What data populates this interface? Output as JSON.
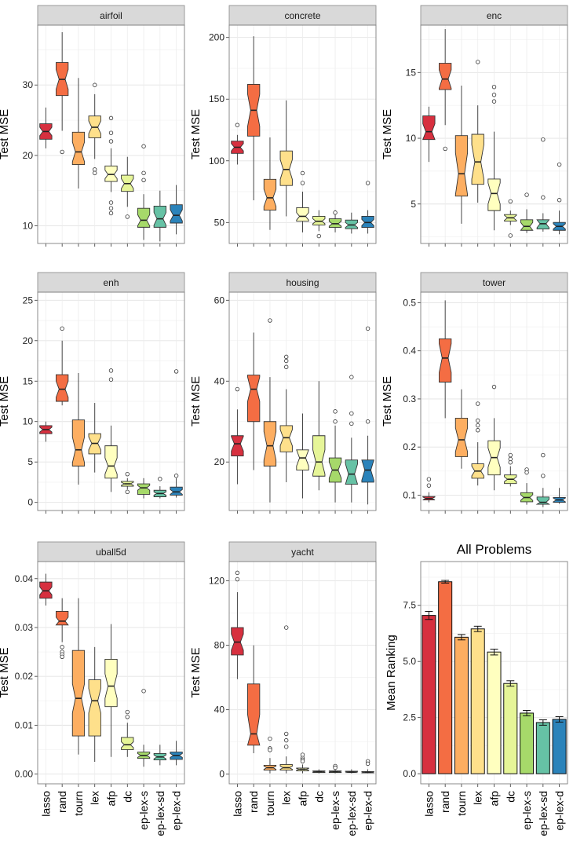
{
  "colors": [
    "#d7303f",
    "#f46d43",
    "#fdae61",
    "#fee08b",
    "#ffffbf",
    "#e6f598",
    "#a6d96a",
    "#66c2a5",
    "#2b83ba"
  ],
  "methods": [
    "lasso",
    "rand",
    "tourn",
    "lex",
    "afp",
    "dc",
    "ep-lex-s",
    "ep-lex-sd",
    "ep-lex-d"
  ],
  "chart_data": [
    {
      "type": "box",
      "name": "airfoil",
      "title": "airfoil",
      "ylabel": "Test MSE",
      "ylim": [
        7.5,
        38.5
      ],
      "yticks": [
        10,
        20,
        30
      ],
      "boxes": [
        {
          "min": 21,
          "q1": 22.3,
          "med": 23.4,
          "q3": 24.5,
          "max": 26.8,
          "notch": 0.6,
          "out": []
        },
        {
          "min": 23.5,
          "q1": 28.5,
          "med": 30.8,
          "q3": 33.2,
          "max": 37.5,
          "notch": 1.4,
          "out": [
            20.5
          ]
        },
        {
          "min": 15.3,
          "q1": 18.7,
          "med": 20.5,
          "q3": 23.3,
          "max": 31,
          "notch": 1.4,
          "out": []
        },
        {
          "min": 19.5,
          "q1": 22.5,
          "med": 24,
          "q3": 25.6,
          "max": 28.7,
          "notch": 0.9,
          "out": [
            30,
            18,
            17.5
          ]
        },
        {
          "min": 14.8,
          "q1": 16.3,
          "med": 17.3,
          "q3": 18.5,
          "max": 21,
          "notch": 0.6,
          "out": [
            25.3,
            23.2,
            22,
            13.3,
            12.5,
            11.8
          ]
        },
        {
          "min": 12.7,
          "q1": 14.9,
          "med": 16,
          "q3": 17.2,
          "max": 19.8,
          "notch": 0.7,
          "out": [
            11.3
          ]
        },
        {
          "min": 8,
          "q1": 9.8,
          "med": 10.8,
          "q3": 12.5,
          "max": 14.5,
          "notch": 0.8,
          "out": [
            21.3,
            17.5,
            16.5
          ]
        },
        {
          "min": 7.8,
          "q1": 9.8,
          "med": 11,
          "q3": 12.8,
          "max": 15,
          "notch": 0.9,
          "out": []
        },
        {
          "min": 8.8,
          "q1": 10.4,
          "med": 11.5,
          "q3": 13,
          "max": 15.8,
          "notch": 0.8,
          "out": []
        }
      ]
    },
    {
      "type": "box",
      "name": "concrete",
      "title": "concrete",
      "ylabel": "Test MSE",
      "ylim": [
        33,
        210
      ],
      "yticks": [
        50,
        100,
        150,
        200
      ],
      "boxes": [
        {
          "min": 97,
          "q1": 106,
          "med": 111,
          "q3": 116,
          "max": 121,
          "notch": 3,
          "out": [
            129
          ]
        },
        {
          "min": 68,
          "q1": 120,
          "med": 141,
          "q3": 162,
          "max": 201,
          "notch": 13,
          "out": []
        },
        {
          "min": 44,
          "q1": 60,
          "med": 70,
          "q3": 85,
          "max": 119,
          "notch": 7,
          "out": []
        },
        {
          "min": 55,
          "q1": 80,
          "med": 93,
          "q3": 108,
          "max": 149,
          "notch": 8,
          "out": []
        },
        {
          "min": 42,
          "q1": 51,
          "med": 55,
          "q3": 62,
          "max": 75,
          "notch": 3,
          "out": [
            90,
            82
          ]
        },
        {
          "min": 43,
          "q1": 48,
          "med": 51,
          "q3": 55,
          "max": 60,
          "notch": 2,
          "out": [
            39
          ]
        },
        {
          "min": 42,
          "q1": 46,
          "med": 49,
          "q3": 53,
          "max": 60,
          "notch": 2,
          "out": [
            58
          ]
        },
        {
          "min": 41,
          "q1": 45,
          "med": 48,
          "q3": 52,
          "max": 58,
          "notch": 2,
          "out": []
        },
        {
          "min": 41,
          "q1": 46,
          "med": 50,
          "q3": 55,
          "max": 60,
          "notch": 2.5,
          "out": [
            82
          ]
        }
      ]
    },
    {
      "type": "box",
      "name": "enc",
      "title": "enc",
      "ylabel": "Test MSE",
      "ylim": [
        2,
        18.6
      ],
      "yticks": [
        5,
        10,
        15
      ],
      "boxes": [
        {
          "min": 8.2,
          "q1": 9.9,
          "med": 10.5,
          "q3": 11.7,
          "max": 12.4,
          "notch": 0.6,
          "out": []
        },
        {
          "min": 11,
          "q1": 13.7,
          "med": 14.5,
          "q3": 15.7,
          "max": 18.3,
          "notch": 0.7,
          "out": [
            9.2
          ]
        },
        {
          "min": 3.5,
          "q1": 5.6,
          "med": 7.3,
          "q3": 10.2,
          "max": 14,
          "notch": 1.6,
          "out": []
        },
        {
          "min": 5.1,
          "q1": 6.5,
          "med": 8.2,
          "q3": 10.3,
          "max": 12.5,
          "notch": 1.3,
          "out": [
            15.8
          ]
        },
        {
          "min": 3,
          "q1": 4.5,
          "med": 5.8,
          "q3": 6.9,
          "max": 10.5,
          "notch": 0.8,
          "out": [
            13.9,
            13.3,
            12.8
          ]
        },
        {
          "min": 3.4,
          "q1": 3.7,
          "med": 3.95,
          "q3": 4.2,
          "max": 4.5,
          "notch": 0.2,
          "out": [
            5.2,
            2.6
          ]
        },
        {
          "min": 2.8,
          "q1": 3,
          "med": 3.3,
          "q3": 3.8,
          "max": 4.6,
          "notch": 0.3,
          "out": [
            5.7
          ]
        },
        {
          "min": 2.9,
          "q1": 3.1,
          "med": 3.5,
          "q3": 3.8,
          "max": 4.3,
          "notch": 0.3,
          "out": [
            9.9,
            5.5
          ]
        },
        {
          "min": 2.7,
          "q1": 3,
          "med": 3.3,
          "q3": 3.6,
          "max": 4.5,
          "notch": 0.2,
          "out": [
            8,
            5.3
          ]
        }
      ]
    },
    {
      "type": "box",
      "name": "enh",
      "title": "enh",
      "ylabel": "Test MSE",
      "ylim": [
        -1,
        26
      ],
      "yticks": [
        0,
        5,
        10,
        15,
        20,
        25
      ],
      "boxes": [
        {
          "min": 7.5,
          "q1": 8.5,
          "med": 9,
          "q3": 9.5,
          "max": 10,
          "notch": 0.3,
          "out": []
        },
        {
          "min": 12,
          "q1": 12.5,
          "med": 14,
          "q3": 15.8,
          "max": 20,
          "notch": 1,
          "out": [
            21.5
          ]
        },
        {
          "min": 2.2,
          "q1": 4.5,
          "med": 6.5,
          "q3": 10.2,
          "max": 16,
          "notch": 1.6,
          "out": []
        },
        {
          "min": 3.7,
          "q1": 6,
          "med": 7.3,
          "q3": 8.5,
          "max": 12.3,
          "notch": 0.8,
          "out": []
        },
        {
          "min": 1.3,
          "q1": 3,
          "med": 4.5,
          "q3": 7,
          "max": 9.5,
          "notch": 1,
          "out": [
            16.3,
            15.2
          ]
        },
        {
          "min": 1.6,
          "q1": 2,
          "med": 2.3,
          "q3": 2.6,
          "max": 3,
          "notch": 0.2,
          "out": [
            3.5,
            1.3
          ]
        },
        {
          "min": 0.5,
          "q1": 1,
          "med": 1.8,
          "q3": 2.3,
          "max": 3,
          "notch": 0.3,
          "out": []
        },
        {
          "min": 0.5,
          "q1": 0.7,
          "med": 1.1,
          "q3": 1.5,
          "max": 2,
          "notch": 0.2,
          "out": [
            2.9
          ]
        },
        {
          "min": 0.6,
          "q1": 0.9,
          "med": 1.3,
          "q3": 1.9,
          "max": 3,
          "notch": 0.3,
          "out": [
            16.2,
            3.3
          ]
        }
      ]
    },
    {
      "type": "box",
      "name": "housing",
      "title": "housing",
      "ylabel": "Test MSE",
      "ylim": [
        8,
        62
      ],
      "yticks": [
        20,
        40,
        60
      ],
      "boxes": [
        {
          "min": 14.5,
          "q1": 21.5,
          "med": 24.5,
          "q3": 26.5,
          "max": 33,
          "notch": 1.8,
          "out": [
            38
          ]
        },
        {
          "min": 18,
          "q1": 30,
          "med": 38,
          "q3": 41.5,
          "max": 52,
          "notch": 3,
          "out": []
        },
        {
          "min": 10,
          "q1": 19,
          "med": 24,
          "q3": 30,
          "max": 41,
          "notch": 3.5,
          "out": [
            55
          ]
        },
        {
          "min": 15,
          "q1": 22.5,
          "med": 26,
          "q3": 29,
          "max": 38,
          "notch": 2,
          "out": [
            46,
            45,
            43.5
          ]
        },
        {
          "min": 11,
          "q1": 18,
          "med": 21,
          "q3": 23,
          "max": 32,
          "notch": 2,
          "out": []
        },
        {
          "min": 13,
          "q1": 16.5,
          "med": 20,
          "q3": 26.5,
          "max": 40,
          "notch": 3,
          "out": []
        },
        {
          "min": 10,
          "q1": 15,
          "med": 18,
          "q3": 21,
          "max": 29,
          "notch": 2,
          "out": [
            32.5,
            30
          ]
        },
        {
          "min": 10,
          "q1": 14.5,
          "med": 17,
          "q3": 20.5,
          "max": 26,
          "notch": 2.5,
          "out": [
            41,
            32,
            29.5
          ]
        },
        {
          "min": 9.5,
          "q1": 15,
          "med": 18,
          "q3": 20.5,
          "max": 26.5,
          "notch": 2.5,
          "out": [
            53,
            30
          ]
        }
      ]
    },
    {
      "type": "box",
      "name": "tower",
      "title": "tower",
      "ylabel": "Test MSE",
      "ylim": [
        0.068,
        0.522
      ],
      "yticks": [
        0.1,
        0.2,
        0.3,
        0.4,
        0.5
      ],
      "boxes": [
        {
          "min": 0.085,
          "q1": 0.09,
          "med": 0.093,
          "q3": 0.097,
          "max": 0.106,
          "notch": 0.003,
          "out": [
            0.12,
            0.133
          ]
        },
        {
          "min": 0.26,
          "q1": 0.335,
          "med": 0.385,
          "q3": 0.425,
          "max": 0.505,
          "notch": 0.03,
          "out": []
        },
        {
          "min": 0.155,
          "q1": 0.18,
          "med": 0.215,
          "q3": 0.26,
          "max": 0.32,
          "notch": 0.025,
          "out": []
        },
        {
          "min": 0.12,
          "q1": 0.135,
          "med": 0.15,
          "q3": 0.165,
          "max": 0.21,
          "notch": 0.01,
          "out": [
            0.29,
            0.255,
            0.245,
            0.235
          ]
        },
        {
          "min": 0.11,
          "q1": 0.142,
          "med": 0.178,
          "q3": 0.213,
          "max": 0.26,
          "notch": 0.02,
          "out": [
            0.325
          ]
        },
        {
          "min": 0.118,
          "q1": 0.124,
          "med": 0.133,
          "q3": 0.142,
          "max": 0.16,
          "notch": 0.005,
          "out": [
            0.183,
            0.175,
            0.168
          ]
        },
        {
          "min": 0.08,
          "q1": 0.086,
          "med": 0.095,
          "q3": 0.105,
          "max": 0.125,
          "notch": 0.006,
          "out": [
            0.153,
            0.147
          ]
        },
        {
          "min": 0.075,
          "q1": 0.081,
          "med": 0.085,
          "q3": 0.096,
          "max": 0.115,
          "notch": 0.006,
          "out": [
            0.183,
            0.14
          ]
        },
        {
          "min": 0.082,
          "q1": 0.085,
          "med": 0.09,
          "q3": 0.095,
          "max": 0.115,
          "notch": 0.004,
          "out": []
        }
      ]
    },
    {
      "type": "box",
      "name": "uball5d",
      "title": "uball5d",
      "ylabel": "Test MSE",
      "ylim": [
        -0.002,
        0.0435
      ],
      "yticks": [
        0,
        0.01,
        0.02,
        0.03,
        0.04
      ],
      "yticklabels": [
        "0.00",
        "0.01",
        "0.02",
        "0.03",
        "0.04"
      ],
      "boxes": [
        {
          "min": 0.0345,
          "q1": 0.036,
          "med": 0.0375,
          "q3": 0.0393,
          "max": 0.041,
          "notch": 0.0008,
          "out": []
        },
        {
          "min": 0.027,
          "q1": 0.0305,
          "med": 0.0313,
          "q3": 0.0333,
          "max": 0.036,
          "notch": 0.0008,
          "out": [
            0.026,
            0.025,
            0.0245,
            0.024
          ]
        },
        {
          "min": 0.004,
          "q1": 0.0078,
          "med": 0.0155,
          "q3": 0.0253,
          "max": 0.036,
          "notch": 0.003,
          "out": []
        },
        {
          "min": 0.0025,
          "q1": 0.0078,
          "med": 0.015,
          "q3": 0.0193,
          "max": 0.026,
          "notch": 0.0025,
          "out": []
        },
        {
          "min": 0.0035,
          "q1": 0.0138,
          "med": 0.018,
          "q3": 0.0235,
          "max": 0.0307,
          "notch": 0.0025,
          "out": []
        },
        {
          "min": 0.0035,
          "q1": 0.005,
          "med": 0.006,
          "q3": 0.0075,
          "max": 0.0105,
          "notch": 0.0006,
          "out": [
            0.0127,
            0.0117
          ]
        },
        {
          "min": 0.0015,
          "q1": 0.0032,
          "med": 0.0038,
          "q3": 0.0045,
          "max": 0.006,
          "notch": 0.0004,
          "out": [
            0.017
          ]
        },
        {
          "min": 0.0018,
          "q1": 0.0029,
          "med": 0.0035,
          "q3": 0.0042,
          "max": 0.006,
          "notch": 0.0004,
          "out": []
        },
        {
          "min": 0.0018,
          "q1": 0.003,
          "med": 0.0038,
          "q3": 0.0045,
          "max": 0.0068,
          "notch": 0.0004,
          "out": []
        }
      ]
    },
    {
      "type": "box",
      "name": "yacht",
      "title": "yacht",
      "ylabel": "Test MSE",
      "ylim": [
        -6,
        132
      ],
      "yticks": [
        0,
        40,
        80,
        120
      ],
      "boxes": [
        {
          "min": 59,
          "q1": 74,
          "med": 82,
          "q3": 91,
          "max": 113,
          "notch": 5,
          "out": [
            125,
            121
          ]
        },
        {
          "min": 13,
          "q1": 18,
          "med": 25,
          "q3": 56,
          "max": 80,
          "notch": 12,
          "out": []
        },
        {
          "min": 0.5,
          "q1": 2.5,
          "med": 4,
          "q3": 5.5,
          "max": 10,
          "notch": 1,
          "out": [
            22,
            16,
            15
          ]
        },
        {
          "min": 0.5,
          "q1": 2.5,
          "med": 4,
          "q3": 6,
          "max": 11,
          "notch": 1,
          "out": [
            91,
            25,
            21,
            17
          ]
        },
        {
          "min": 0.5,
          "q1": 2,
          "med": 3,
          "q3": 3.8,
          "max": 6,
          "notch": 0.5,
          "out": [
            12,
            10,
            9,
            8
          ]
        },
        {
          "min": 0.5,
          "q1": 1,
          "med": 1.5,
          "q3": 2,
          "max": 3,
          "notch": 0.3,
          "out": []
        },
        {
          "min": 0.5,
          "q1": 1,
          "med": 1.5,
          "q3": 2,
          "max": 3,
          "notch": 0.3,
          "out": [
            5,
            4
          ]
        },
        {
          "min": 0.5,
          "q1": 1,
          "med": 1.3,
          "q3": 1.8,
          "max": 3,
          "notch": 0.3,
          "out": []
        },
        {
          "min": 0.5,
          "q1": 0.8,
          "med": 1.2,
          "q3": 1.6,
          "max": 3,
          "notch": 0.3,
          "out": [
            8,
            6.5
          ]
        }
      ]
    },
    {
      "type": "bar",
      "name": "all-problems",
      "title": "All Problems",
      "ylabel": "Mean Ranking",
      "ylim": [
        -0.45,
        9.45
      ],
      "yticks": [
        0,
        2.5,
        5,
        7.5
      ],
      "yticklabels": [
        "0.0",
        "2.5",
        "5.0",
        "7.5"
      ],
      "categories": [
        "lasso",
        "rand",
        "tourn",
        "lex",
        "afp",
        "dc",
        "ep-lex-s",
        "ep-lex-sd",
        "ep-lex-d"
      ],
      "values": [
        7.05,
        8.55,
        6.08,
        6.45,
        5.42,
        4.02,
        2.7,
        2.28,
        2.42
      ],
      "errors": [
        0.18,
        0.06,
        0.12,
        0.12,
        0.13,
        0.12,
        0.12,
        0.12,
        0.12
      ]
    }
  ]
}
